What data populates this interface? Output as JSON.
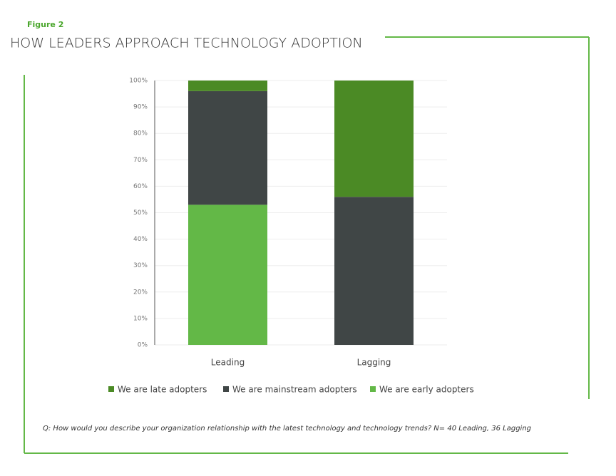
{
  "chart_data": {
    "type": "stacked-bar",
    "figure_label": "Figure 2",
    "title": "HOW LEADERS APPROACH TECHNOLOGY ADOPTION",
    "categories": [
      "Leading",
      "Lagging"
    ],
    "series": [
      {
        "name": "We are late adopters",
        "color": "#4b8a25",
        "values": [
          4,
          44
        ]
      },
      {
        "name": "We are mainstream adopters",
        "color": "#404646",
        "values": [
          43,
          56
        ]
      },
      {
        "name": "We are early adopters",
        "color": "#63b847",
        "values": [
          53,
          0
        ]
      }
    ],
    "ylim": [
      0,
      100
    ],
    "yticks": [
      {
        "value": 0,
        "label": "0%"
      },
      {
        "value": 10,
        "label": "10%"
      },
      {
        "value": 20,
        "label": "20%"
      },
      {
        "value": 30,
        "label": "30%"
      },
      {
        "value": 40,
        "label": "40%"
      },
      {
        "value": 50,
        "label": "50%"
      },
      {
        "value": 60,
        "label": "60%"
      },
      {
        "value": 70,
        "label": "70%"
      },
      {
        "value": 80,
        "label": "80%"
      },
      {
        "value": 90,
        "label": "90%"
      },
      {
        "value": 100,
        "label": "100%"
      }
    ],
    "grid": true,
    "legend": "bottom",
    "note": "Q: How would you describe your organization relationship with the latest technology and technology trends? N= 40 Leading, 36 Lagging"
  }
}
